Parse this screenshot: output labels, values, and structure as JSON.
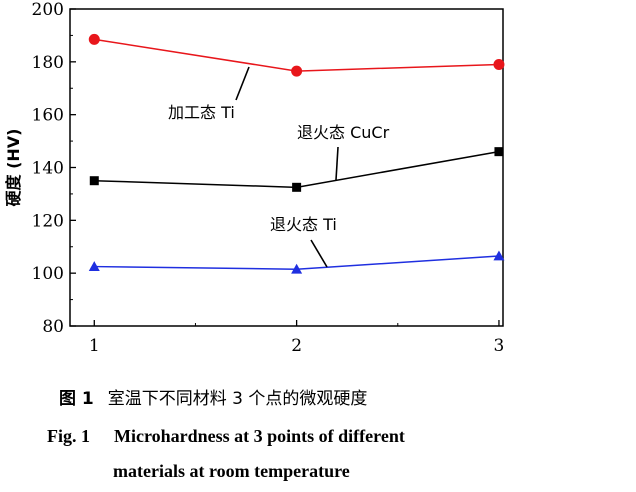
{
  "chart_data": {
    "type": "line",
    "x": [
      1,
      2,
      3
    ],
    "x_tick_labels": [
      "1",
      "2",
      "3"
    ],
    "xlim": [
      0.88,
      3.02
    ],
    "ylim": [
      80,
      200
    ],
    "y_ticks": [
      80,
      100,
      120,
      140,
      160,
      180,
      200
    ],
    "ylabel": "硬度 (HV)",
    "xlabel": "",
    "grid": false,
    "series": [
      {
        "name": "加工态 Ti",
        "values": [
          188.5,
          176.5,
          179
        ],
        "color": "#e8161b",
        "marker": "circle"
      },
      {
        "name": "退火态 CuCr",
        "values": [
          135,
          132.5,
          146
        ],
        "color": "#000000",
        "marker": "square"
      },
      {
        "name": "退火态 Ti",
        "values": [
          102.5,
          101.5,
          106.5
        ],
        "color": "#1f2fe0",
        "marker": "triangle"
      }
    ]
  },
  "caption": {
    "cn_label": "图 1",
    "cn_text": "室温下不同材料 3 个点的微观硬度",
    "en_label": "Fig. 1",
    "en_line1": "Microhardness at 3 points of different",
    "en_line2": "materials at room temperature"
  }
}
